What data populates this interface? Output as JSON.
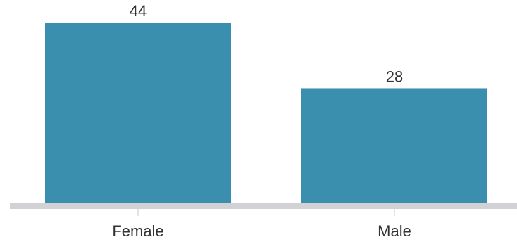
{
  "chart_data": {
    "type": "bar",
    "categories": [
      "Female",
      "Male"
    ],
    "values": [
      44,
      28
    ],
    "data_labels": [
      "44",
      "28"
    ],
    "title": "",
    "xlabel": "",
    "ylabel": "",
    "ylim": [
      0,
      44
    ],
    "grid": false,
    "legend": "none",
    "colors": {
      "bar": "#3b8fae",
      "baseline": "#d2d2d6",
      "tick": "#c8c8cc",
      "text": "#333333"
    }
  }
}
